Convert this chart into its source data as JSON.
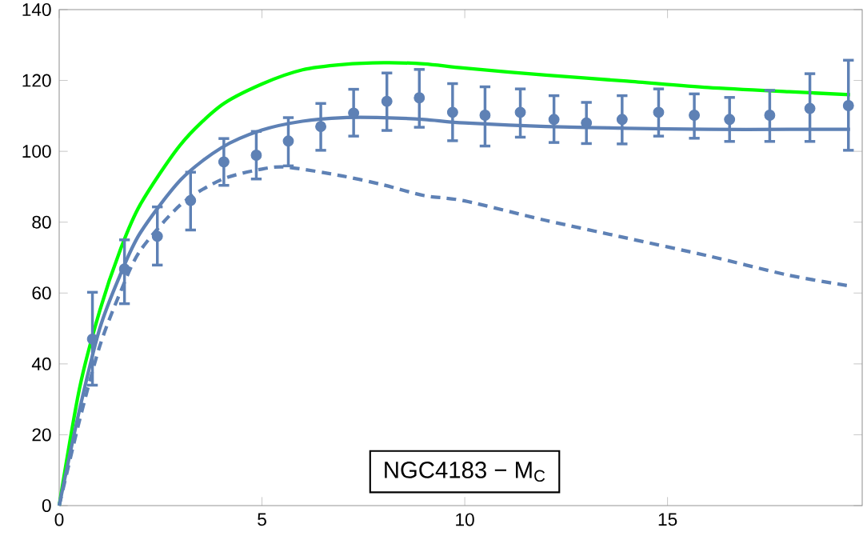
{
  "chart_data": {
    "type": "line",
    "xlim": [
      0,
      19.8
    ],
    "ylim": [
      0,
      140
    ],
    "xticks": [
      0,
      5,
      10,
      15
    ],
    "yticks": [
      0,
      20,
      40,
      60,
      80,
      100,
      120,
      140
    ],
    "grid": false,
    "annotations": [
      "NGC4183 − M$_{C}$"
    ],
    "series": [
      {
        "color": "#00ff00",
        "line_style": "solid",
        "x": [
          0,
          0.5,
          1,
          1.5,
          2,
          3,
          4,
          5,
          6,
          7,
          8,
          9,
          10,
          12,
          14,
          16,
          18,
          19.5
        ],
        "values": [
          0,
          33,
          55,
          72,
          85,
          102,
          113,
          119,
          123,
          124.5,
          125,
          124.7,
          123.5,
          121.5,
          119.8,
          118,
          116.8,
          116
        ]
      },
      {
        "color": "#5e81b5",
        "line_style": "solid",
        "x": [
          0,
          0.5,
          1,
          1.5,
          2,
          3,
          4,
          5,
          6,
          7,
          8,
          9,
          10,
          12,
          14,
          16,
          18,
          19.5
        ],
        "values": [
          0,
          27,
          50,
          65,
          77,
          92,
          101,
          106,
          108.5,
          109.5,
          109.5,
          109,
          108,
          107,
          106.5,
          106.2,
          106.2,
          106.2
        ]
      },
      {
        "color": "#5e81b5",
        "line_style": "dashed",
        "x": [
          0,
          0.5,
          1,
          1.5,
          2,
          3,
          4,
          5,
          5.65,
          7,
          8,
          9,
          10,
          12,
          14,
          16,
          18,
          19.5
        ],
        "values": [
          0,
          24,
          45,
          60,
          72,
          85,
          92,
          95,
          95.5,
          93,
          90.5,
          87.5,
          86,
          80.5,
          75.5,
          70.5,
          65,
          62
        ]
      },
      {
        "type": "scatter",
        "color": "#5e81b5",
        "marker": "circle",
        "x": [
          0.82,
          1.61,
          2.42,
          3.24,
          4.06,
          4.86,
          5.65,
          6.45,
          7.26,
          8.08,
          8.88,
          9.7,
          10.5,
          11.37,
          12.2,
          13.0,
          13.88,
          14.78,
          15.66,
          16.53,
          17.52,
          18.51,
          19.46
        ],
        "values": [
          47,
          66.8,
          76,
          86.1,
          97,
          98.9,
          102.9,
          107,
          110.8,
          114.1,
          115.1,
          111,
          110.2,
          111,
          109,
          108,
          109,
          111,
          110.2,
          109,
          110.2,
          112.1,
          112.9
        ],
        "errors": [
          [
            33.6,
            60.6
          ],
          [
            56.6,
            75.4
          ],
          [
            67.5,
            84.7
          ],
          [
            77.4,
            94.5
          ],
          [
            90,
            104
          ],
          [
            91.8,
            106
          ],
          [
            95.5,
            109.9
          ],
          [
            99.9,
            113.9
          ],
          [
            103.9,
            117.9
          ],
          [
            105.5,
            122.5
          ],
          [
            106.4,
            123.5
          ],
          [
            102.6,
            119.5
          ],
          [
            101.1,
            118.6
          ],
          [
            103.6,
            118
          ],
          [
            102.1,
            116.1
          ],
          [
            101.8,
            114.2
          ],
          [
            101.7,
            116.1
          ],
          [
            103.9,
            118
          ],
          [
            103.3,
            116.6
          ],
          [
            102.4,
            115.6
          ],
          [
            102.4,
            117.6
          ],
          [
            102.4,
            122.3
          ],
          [
            99.9,
            126.1
          ]
        ]
      }
    ]
  }
}
